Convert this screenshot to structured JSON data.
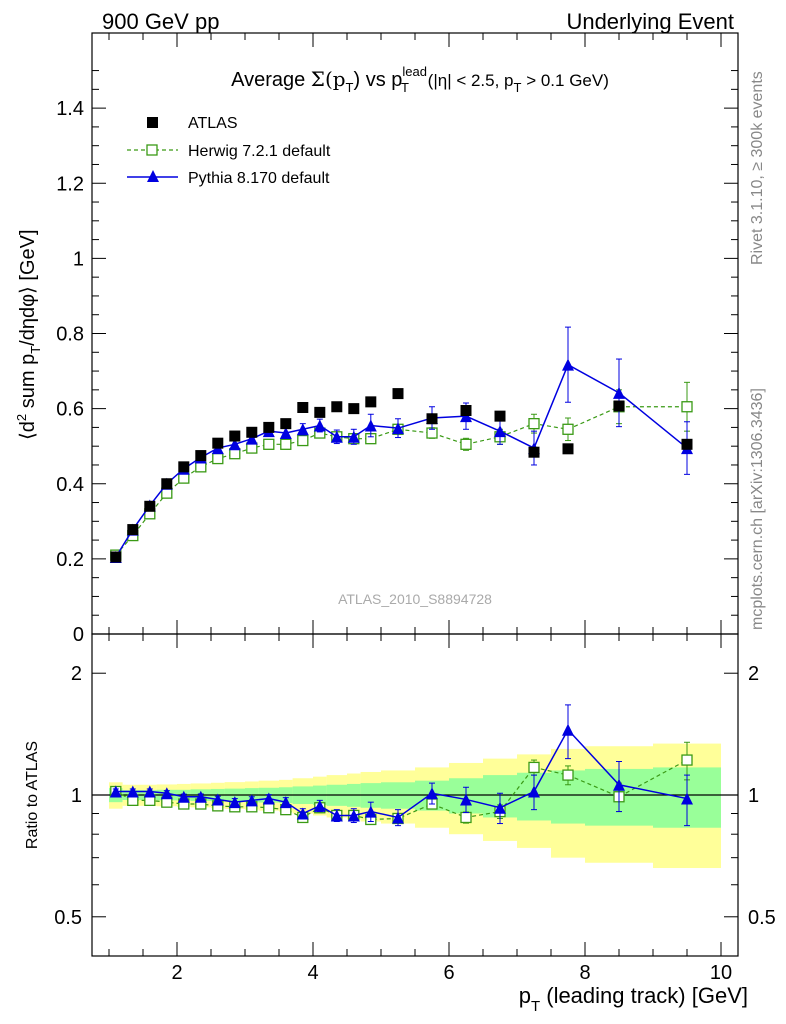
{
  "header": {
    "left": "900 GeV pp",
    "right": "Underlying Event"
  },
  "side": {
    "rivet": "Rivet 3.1.10, ≥ 300k events",
    "mcplots": "mcplots.cern.ch [arXiv:1306.3436]"
  },
  "colors": {
    "atlas": "#000000",
    "herwig": "#3a9a15",
    "pythia": "#0000e0",
    "band_inner": "#99ff99",
    "band_outer": "#ffff99"
  },
  "chart_data": [
    {
      "type": "scatter",
      "title": "Average Σ(p_T) vs p_T^lead (|η| < 2.5, p_T > 0.1 GeV)",
      "title_parts": {
        "t1": "Average ",
        "t2": "Σ(p",
        "t3": "T",
        "t4": ") vs p",
        "t5": "lead",
        "t6": "T",
        "t7": " (|η| < 2.5, p",
        "t8": "T",
        "t9": " > 0.1 GeV)"
      },
      "ylabel": "⟨d² sum p_T/dηdφ⟩ [GeV]",
      "ylabel_parts": {
        "a": "⟨d",
        "b": "2",
        "c": " sum p",
        "d": "T",
        "e": "/dηdφ⟩ [GeV]"
      },
      "xlim": [
        0.75,
        10.25
      ],
      "ylim": [
        0,
        1.6
      ],
      "yticks": [
        "0",
        "0.2",
        "0.4",
        "0.6",
        "0.8",
        "1",
        "1.2",
        "1.4"
      ],
      "annotation": "ATLAS_2010_S8894728",
      "legend_position": "top-left",
      "series": [
        {
          "name": "ATLAS",
          "style": "markers-square-filled",
          "x": [
            1.1,
            1.35,
            1.6,
            1.85,
            2.1,
            2.35,
            2.6,
            2.85,
            3.1,
            3.35,
            3.6,
            3.85,
            4.1,
            4.35,
            4.6,
            4.85,
            5.25,
            5.75,
            6.25,
            6.75,
            7.25,
            7.75,
            8.5,
            9.5
          ],
          "y": [
            0.205,
            0.278,
            0.34,
            0.4,
            0.445,
            0.475,
            0.508,
            0.527,
            0.537,
            0.55,
            0.56,
            0.603,
            0.59,
            0.605,
            0.6,
            0.618,
            0.64,
            0.573,
            0.595,
            0.58,
            0.484,
            0.493,
            0.607,
            0.505
          ]
        },
        {
          "name": "Herwig 7.2.1 default",
          "style": "dashed-open-square",
          "x": [
            1.1,
            1.35,
            1.6,
            1.85,
            2.1,
            2.35,
            2.6,
            2.85,
            3.1,
            3.35,
            3.6,
            3.85,
            4.1,
            4.35,
            4.6,
            4.85,
            5.25,
            5.75,
            6.25,
            6.75,
            7.25,
            7.75,
            8.5,
            9.5
          ],
          "y": [
            0.21,
            0.262,
            0.32,
            0.375,
            0.415,
            0.445,
            0.467,
            0.48,
            0.495,
            0.505,
            0.505,
            0.515,
            0.535,
            0.525,
            0.52,
            0.52,
            0.545,
            0.535,
            0.505,
            0.525,
            0.56,
            0.545,
            0.605,
            0.605
          ],
          "err": [
            0.004,
            0.004,
            0.004,
            0.004,
            0.004,
            0.004,
            0.005,
            0.005,
            0.005,
            0.006,
            0.006,
            0.007,
            0.008,
            0.008,
            0.009,
            0.01,
            0.012,
            0.014,
            0.016,
            0.02,
            0.025,
            0.03,
            0.045,
            0.065
          ]
        },
        {
          "name": "Pythia 8.170 default",
          "style": "solid-filled-triangle",
          "x": [
            1.1,
            1.35,
            1.6,
            1.85,
            2.1,
            2.35,
            2.6,
            2.85,
            3.1,
            3.35,
            3.6,
            3.85,
            4.1,
            4.35,
            4.6,
            4.85,
            5.25,
            5.75,
            6.25,
            6.75,
            7.25,
            7.75,
            8.5,
            9.5
          ],
          "y": [
            0.205,
            0.278,
            0.342,
            0.4,
            0.44,
            0.47,
            0.495,
            0.505,
            0.52,
            0.54,
            0.535,
            0.545,
            0.555,
            0.525,
            0.525,
            0.555,
            0.548,
            0.575,
            0.58,
            0.54,
            0.495,
            0.717,
            0.642,
            0.495
          ],
          "err": [
            0.004,
            0.005,
            0.005,
            0.006,
            0.007,
            0.008,
            0.009,
            0.01,
            0.011,
            0.012,
            0.013,
            0.015,
            0.017,
            0.018,
            0.02,
            0.03,
            0.025,
            0.03,
            0.035,
            0.035,
            0.045,
            0.1,
            0.09,
            0.07
          ]
        }
      ]
    },
    {
      "type": "scatter",
      "xlabel": "p_T (leading track) [GeV]",
      "xlabel_parts": {
        "a": "p",
        "b": "T",
        "c": " (leading track) [GeV]"
      },
      "ylabel": "Ratio to ATLAS",
      "xlim": [
        0.75,
        10.25
      ],
      "ylim": [
        0.4,
        2.5
      ],
      "ylog": true,
      "yticks": [
        "0.5",
        "1",
        "2"
      ],
      "xticks": [
        "2",
        "4",
        "6",
        "8",
        "10"
      ],
      "bands": {
        "edges": [
          1.0,
          1.2,
          1.5,
          1.7,
          2.0,
          2.2,
          2.5,
          2.7,
          3.0,
          3.2,
          3.5,
          3.7,
          4.0,
          4.2,
          4.5,
          4.7,
          5.0,
          5.5,
          6.0,
          6.5,
          7.0,
          7.5,
          8.0,
          9.0,
          10.0
        ],
        "inner": [
          0.04,
          0.028,
          0.028,
          0.03,
          0.03,
          0.033,
          0.035,
          0.037,
          0.04,
          0.042,
          0.045,
          0.05,
          0.055,
          0.06,
          0.065,
          0.07,
          0.075,
          0.085,
          0.1,
          0.12,
          0.135,
          0.15,
          0.16,
          0.17
        ],
        "outer": [
          0.075,
          0.06,
          0.06,
          0.062,
          0.065,
          0.068,
          0.072,
          0.076,
          0.08,
          0.085,
          0.09,
          0.1,
          0.11,
          0.12,
          0.13,
          0.14,
          0.15,
          0.17,
          0.2,
          0.23,
          0.26,
          0.3,
          0.32,
          0.34
        ]
      },
      "series": [
        {
          "name": "Herwig 7.2.1 default",
          "x": [
            1.1,
            1.35,
            1.6,
            1.85,
            2.1,
            2.35,
            2.6,
            2.85,
            3.1,
            3.35,
            3.6,
            3.85,
            4.1,
            4.35,
            4.6,
            4.85,
            5.25,
            5.75,
            6.25,
            6.75,
            7.25,
            7.75,
            8.5,
            9.5
          ],
          "y": [
            1.02,
            0.97,
            0.97,
            0.96,
            0.95,
            0.95,
            0.94,
            0.935,
            0.935,
            0.93,
            0.92,
            0.88,
            0.93,
            0.89,
            0.89,
            0.87,
            0.875,
            0.95,
            0.88,
            0.91,
            1.17,
            1.12,
            0.99,
            1.22
          ],
          "err": [
            0.01,
            0.01,
            0.01,
            0.01,
            0.01,
            0.01,
            0.01,
            0.01,
            0.01,
            0.012,
            0.012,
            0.015,
            0.015,
            0.016,
            0.017,
            0.02,
            0.02,
            0.025,
            0.028,
            0.035,
            0.05,
            0.06,
            0.08,
            0.13
          ]
        },
        {
          "name": "Pythia 8.170 default",
          "x": [
            1.1,
            1.35,
            1.6,
            1.85,
            2.1,
            2.35,
            2.6,
            2.85,
            3.1,
            3.35,
            3.6,
            3.85,
            4.1,
            4.35,
            4.6,
            4.85,
            5.25,
            5.75,
            6.25,
            6.75,
            7.25,
            7.75,
            8.5,
            9.5
          ],
          "y": [
            1.02,
            1.02,
            1.02,
            1.01,
            0.99,
            0.99,
            0.975,
            0.96,
            0.97,
            0.98,
            0.96,
            0.9,
            0.94,
            0.89,
            0.89,
            0.91,
            0.88,
            1.01,
            0.975,
            0.93,
            1.02,
            1.45,
            1.06,
            0.98
          ],
          "err": [
            0.015,
            0.015,
            0.015,
            0.015,
            0.015,
            0.016,
            0.018,
            0.02,
            0.02,
            0.022,
            0.025,
            0.025,
            0.03,
            0.03,
            0.035,
            0.05,
            0.04,
            0.06,
            0.07,
            0.08,
            0.1,
            0.22,
            0.15,
            0.14
          ]
        }
      ]
    }
  ]
}
